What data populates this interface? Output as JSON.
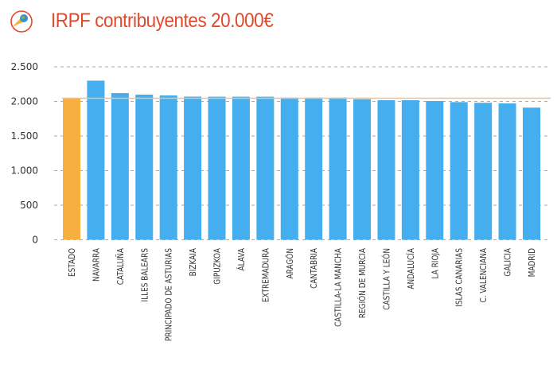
{
  "title": "IRPF contribuyentes 20.000€",
  "logo_icon": "globe-cone-logo",
  "colors": {
    "title": "#e0492b",
    "bar": "#45aeee",
    "highlight": "#f7b040",
    "reference_line": "#f3c08a"
  },
  "chart_data": {
    "type": "bar",
    "title": "IRPF contribuyentes 20.000€",
    "categories": [
      "ESTADO",
      "NAVARRA",
      "CATALUÑA",
      "ILLES BALEARS",
      "PRINCIPADO DE ASTURIAS",
      "BIZKAIA",
      "GIPUZKOA",
      "ÁLAVA",
      "EXTREMADURA",
      "ARAGÓN",
      "CANTABRIA",
      "CASTILLA-LA MANCHA",
      "REGIÓN DE MURCIA",
      "CASTILLA Y LEÓN",
      "ANDALUCÍA",
      "LA RIOJA",
      "ISLAS CANARIAS",
      "C. VALENCIANA",
      "GALICIA",
      "MADRID"
    ],
    "values": [
      2046,
      2300,
      2120,
      2098,
      2086,
      2069,
      2068,
      2068,
      2068,
      2055,
      2055,
      2055,
      2032,
      2017,
      2017,
      2006,
      1990,
      1980,
      1971,
      1910
    ],
    "highlight_category": "ESTADO",
    "reference_line": 2046,
    "yticks": [
      0,
      500,
      1000,
      1500,
      2000,
      2500
    ],
    "ytick_labels": [
      "0",
      "500",
      "1.000",
      "1.500",
      "2.000",
      "2.500"
    ],
    "ylim": [
      0,
      2500
    ],
    "grid": true,
    "xlabel": "",
    "ylabel": ""
  }
}
